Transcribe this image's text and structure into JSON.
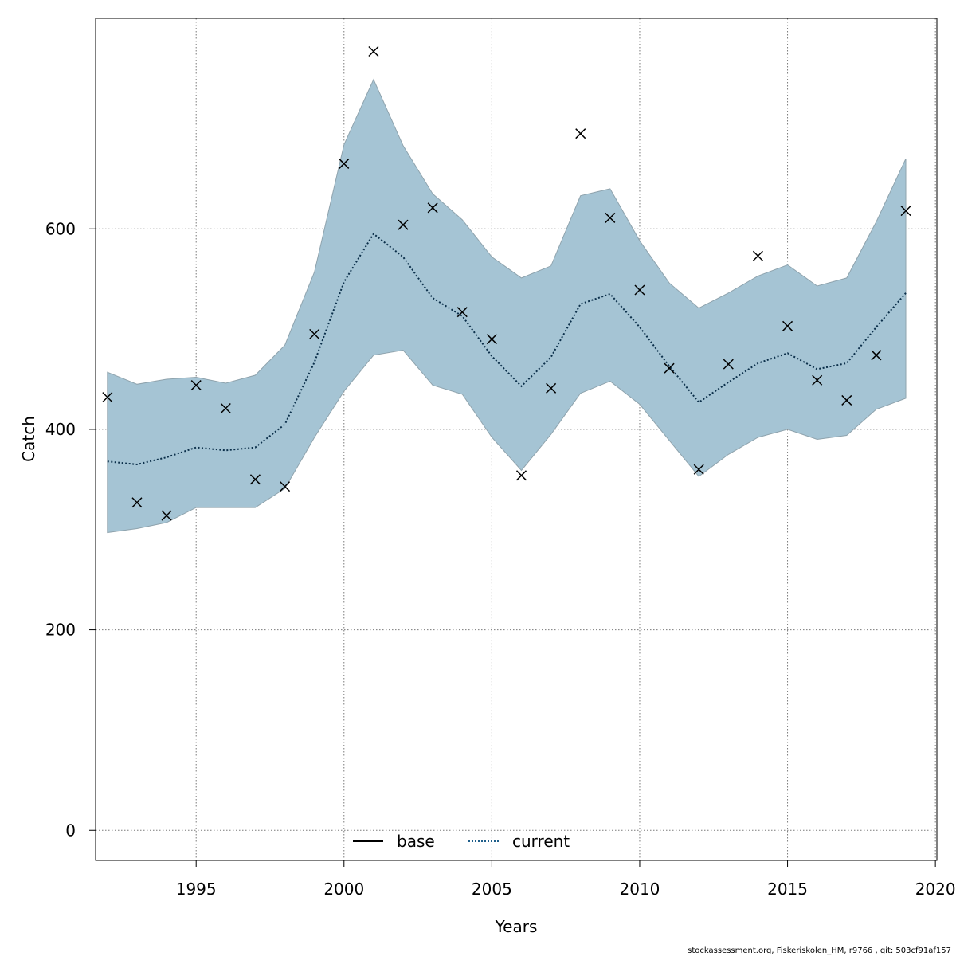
{
  "chart_data": {
    "type": "line",
    "title": "",
    "xlabel": "Years",
    "ylabel": "Catch",
    "xlim": [
      1991.6,
      2020.05
    ],
    "ylim": [
      -30,
      810
    ],
    "x_ticks": [
      1995,
      2000,
      2005,
      2010,
      2015,
      2020
    ],
    "x_tick_labels": [
      "1995",
      "2000",
      "2005",
      "2010",
      "2015",
      "2020"
    ],
    "y_ticks": [
      0,
      200,
      400,
      600
    ],
    "y_tick_labels": [
      "0",
      "200",
      "400",
      "600"
    ],
    "grid": true,
    "legend": {
      "placement": "bottom-center",
      "entries": [
        {
          "name": "base",
          "style": "solid",
          "color": "#000000"
        },
        {
          "name": "current",
          "style": "dotted",
          "color": "#1f5f8b"
        }
      ]
    },
    "colors": {
      "band": "#a5c4d4",
      "band_edge": "#8fa3ad",
      "current_line": "#0b2f4a",
      "points": "#000000",
      "grid": "#7a7a7a"
    },
    "x": [
      1992,
      1993,
      1994,
      1995,
      1996,
      1997,
      1998,
      1999,
      2000,
      2001,
      2002,
      2003,
      2004,
      2005,
      2006,
      2007,
      2008,
      2009,
      2010,
      2011,
      2012,
      2013,
      2014,
      2015,
      2016,
      2017,
      2018,
      2019
    ],
    "series": [
      {
        "name": "current",
        "values": [
          368,
          365,
          372,
          382,
          379,
          382,
          405,
          467,
          547,
          595,
          572,
          531,
          513,
          473,
          443,
          472,
          525,
          535,
          502,
          463,
          427,
          447,
          466,
          476,
          460,
          466,
          502,
          536
        ]
      }
    ],
    "band": {
      "upper": [
        457,
        445,
        450,
        452,
        446,
        454,
        484,
        557,
        684,
        749,
        683,
        635,
        609,
        572,
        551,
        563,
        633,
        640,
        588,
        546,
        521,
        536,
        553,
        564,
        543,
        551,
        607,
        670
      ],
      "lower": [
        297,
        301,
        307,
        322,
        322,
        322,
        341,
        392,
        438,
        474,
        479,
        444,
        435,
        392,
        359,
        395,
        436,
        448,
        425,
        389,
        353,
        375,
        392,
        400,
        390,
        394,
        420,
        431
      ]
    },
    "observations": [
      432,
      327,
      314,
      444,
      421,
      350,
      343,
      495,
      665,
      777,
      604,
      621,
      517,
      490,
      354,
      441,
      695,
      611,
      539,
      461,
      360,
      465,
      573,
      503,
      449,
      429,
      474,
      618
    ]
  },
  "footer": "stockassessment.org, Fiskeriskolen_HM, r9766 , git: 503cf91af157"
}
